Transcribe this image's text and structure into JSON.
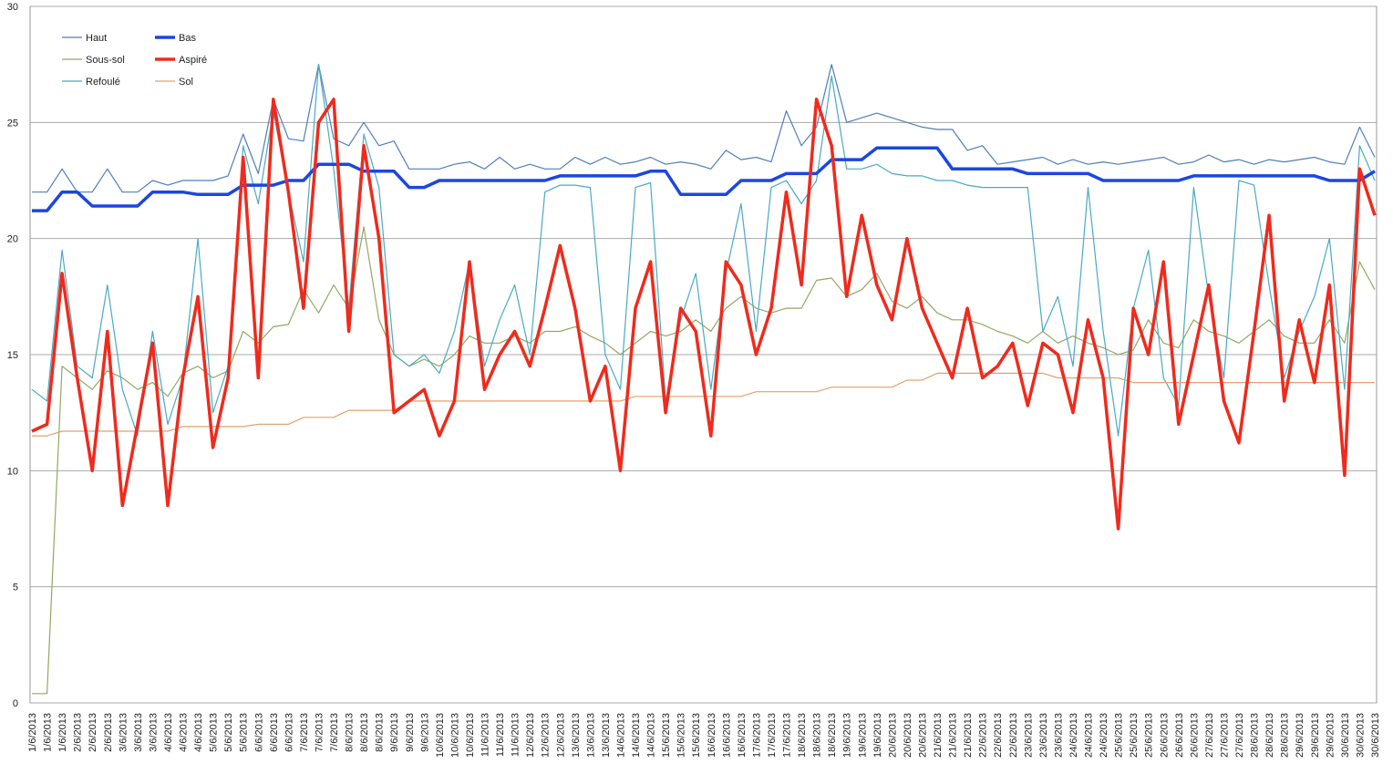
{
  "chart_data": {
    "type": "line",
    "categories": [
      "1/6/2013",
      "1/6/2013",
      "1/6/2013",
      "2/6/2013",
      "2/6/2013",
      "2/6/2013",
      "3/6/2013",
      "3/6/2013",
      "3/6/2013",
      "4/6/2013",
      "4/6/2013",
      "4/6/2013",
      "5/6/2013",
      "5/6/2013",
      "5/6/2013",
      "6/6/2013",
      "6/6/2013",
      "6/6/2013",
      "7/6/2013",
      "7/6/2013",
      "7/6/2013",
      "8/6/2013",
      "8/6/2013",
      "8/6/2013",
      "9/6/2013",
      "9/6/2013",
      "9/6/2013",
      "10/6/2013",
      "10/6/2013",
      "10/6/2013",
      "11/6/2013",
      "11/6/2013",
      "11/6/2013",
      "12/6/2013",
      "12/6/2013",
      "12/6/2013",
      "13/6/2013",
      "13/6/2013",
      "13/6/2013",
      "14/6/2013",
      "14/6/2013",
      "14/6/2013",
      "15/6/2013",
      "15/6/2013",
      "15/6/2013",
      "16/6/2013",
      "16/6/2013",
      "16/6/2013",
      "17/6/2013",
      "17/6/2013",
      "17/6/2013",
      "18/6/2013",
      "18/6/2013",
      "18/6/2013",
      "19/6/2013",
      "19/6/2013",
      "19/6/2013",
      "20/6/2013",
      "20/6/2013",
      "20/6/2013",
      "21/6/2013",
      "21/6/2013",
      "21/6/2013",
      "22/6/2013",
      "22/6/2013",
      "22/6/2013",
      "23/6/2013",
      "23/6/2013",
      "23/6/2013",
      "24/6/2013",
      "24/6/2013",
      "24/6/2013",
      "25/6/2013",
      "25/6/2013",
      "25/6/2013",
      "26/6/2013",
      "26/6/2013",
      "26/6/2013",
      "27/6/2013",
      "27/6/2013",
      "27/6/2013",
      "28/6/2013",
      "28/6/2013",
      "28/6/2013",
      "29/6/2013",
      "29/6/2013",
      "29/6/2013",
      "30/6/2013",
      "30/6/2013",
      "30/6/2013"
    ],
    "series": [
      {
        "name": "Haut",
        "color": "#4f7fb8",
        "values": [
          22,
          22,
          23,
          22,
          22,
          23,
          22,
          22,
          22.5,
          22.3,
          22.5,
          22.5,
          22.5,
          22.7,
          24.5,
          22.8,
          26,
          24.3,
          24.2,
          27.5,
          24.3,
          24,
          25,
          24,
          24.2,
          23,
          23,
          23,
          23.2,
          23.3,
          23,
          23.5,
          23,
          23.2,
          23,
          23,
          23.5,
          23.2,
          23.5,
          23.2,
          23.3,
          23.5,
          23.2,
          23.3,
          23.2,
          23,
          23.8,
          23.4,
          23.5,
          23.3,
          25.5,
          24,
          24.8,
          27.5,
          25,
          25.2,
          25.4,
          25.2,
          25,
          24.8,
          24.7,
          24.7,
          23.8,
          24,
          23.2,
          23.3,
          23.4,
          23.5,
          23.2,
          23.4,
          23.2,
          23.3,
          23.2,
          23.3,
          23.4,
          23.5,
          23.2,
          23.3,
          23.6,
          23.3,
          23.4,
          23.2,
          23.4,
          23.3,
          23.4,
          23.5,
          23.3,
          23.2,
          24.8,
          23.5
        ]
      },
      {
        "name": "Sous-sol",
        "color": "#93a862",
        "values": [
          0.4,
          0.4,
          14.5,
          14,
          13.5,
          14.3,
          14,
          13.5,
          13.8,
          13.2,
          14.2,
          14.5,
          14,
          14.3,
          16,
          15.5,
          16.2,
          16.3,
          17.8,
          16.8,
          18,
          17,
          20.5,
          16.5,
          15,
          14.5,
          14.8,
          14.5,
          15,
          15.8,
          15.5,
          15.5,
          15.8,
          15.5,
          16,
          16,
          16.2,
          15.8,
          15.5,
          15,
          15.5,
          16,
          15.8,
          16,
          16.5,
          16,
          17,
          17.5,
          17,
          16.8,
          17,
          17,
          18.2,
          18.3,
          17.5,
          17.8,
          18.5,
          17.3,
          17,
          17.5,
          16.8,
          16.5,
          16.5,
          16.3,
          16,
          15.8,
          15.5,
          16,
          15.5,
          15.8,
          15.5,
          15.3,
          15,
          15.2,
          16.5,
          15.5,
          15.3,
          16.5,
          16,
          15.8,
          15.5,
          16,
          16.5,
          15.8,
          15.5,
          15.5,
          16.5,
          15.5,
          19,
          17.8
        ]
      },
      {
        "name": "Refoulé",
        "color": "#4aaac4",
        "values": [
          13.5,
          13,
          19.5,
          14.5,
          14,
          18,
          13.5,
          11.5,
          16,
          12,
          14,
          20,
          12.5,
          14.5,
          24,
          21.5,
          25.5,
          22,
          19,
          27.5,
          23,
          17,
          24.5,
          22.2,
          15,
          14.5,
          15,
          14.2,
          16,
          19,
          14.5,
          16.5,
          18,
          15,
          22,
          22.3,
          22.3,
          22.2,
          15,
          13.5,
          22.2,
          22.4,
          13,
          16.5,
          18.5,
          13.5,
          18.5,
          21.5,
          16,
          22.2,
          22.5,
          21.5,
          22.5,
          27,
          23,
          23,
          23.2,
          22.8,
          22.7,
          22.7,
          22.5,
          22.5,
          22.3,
          22.2,
          22.2,
          22.2,
          22.2,
          16,
          17.5,
          14.5,
          22.2,
          16,
          11.5,
          17,
          19.5,
          14,
          12.8,
          22.2,
          17.5,
          14,
          22.5,
          22.3,
          18,
          14,
          16,
          17.5,
          20,
          13.5,
          24,
          22.5
        ]
      },
      {
        "name": "Bas",
        "color": "#1c46e0",
        "values": [
          21.2,
          21.2,
          22,
          22,
          21.4,
          21.4,
          21.4,
          21.4,
          22,
          22,
          22,
          21.9,
          21.9,
          21.9,
          22.3,
          22.3,
          22.3,
          22.5,
          22.5,
          23.2,
          23.2,
          23.2,
          22.9,
          22.9,
          22.9,
          22.2,
          22.2,
          22.5,
          22.5,
          22.5,
          22.5,
          22.5,
          22.5,
          22.5,
          22.5,
          22.7,
          22.7,
          22.7,
          22.7,
          22.7,
          22.7,
          22.9,
          22.9,
          21.9,
          21.9,
          21.9,
          21.9,
          22.5,
          22.5,
          22.5,
          22.8,
          22.8,
          22.8,
          23.4,
          23.4,
          23.4,
          23.9,
          23.9,
          23.9,
          23.9,
          23.9,
          23,
          23,
          23,
          23,
          23,
          22.8,
          22.8,
          22.8,
          22.8,
          22.8,
          22.5,
          22.5,
          22.5,
          22.5,
          22.5,
          22.5,
          22.7,
          22.7,
          22.7,
          22.7,
          22.7,
          22.7,
          22.7,
          22.7,
          22.7,
          22.5,
          22.5,
          22.5,
          22.9
        ]
      },
      {
        "name": "Aspiré",
        "color": "#f02a1c",
        "values": [
          11.7,
          12,
          18.5,
          14,
          10,
          16,
          8.5,
          12,
          15.5,
          8.5,
          14,
          17.5,
          11,
          14,
          23.5,
          14,
          26,
          22,
          17,
          25,
          26,
          16,
          24,
          20,
          12.5,
          13,
          13.5,
          11.5,
          13,
          19,
          13.5,
          15,
          16,
          14.5,
          17,
          19.7,
          17,
          13,
          14.5,
          10,
          17,
          19,
          12.5,
          17,
          16,
          11.5,
          19,
          18,
          15,
          17,
          22,
          18,
          26,
          24,
          17.5,
          21,
          18,
          16.5,
          20,
          17,
          15.5,
          14,
          17,
          14,
          14.5,
          15.5,
          12.8,
          15.5,
          15,
          12.5,
          16.5,
          14,
          7.5,
          17,
          15,
          19,
          12,
          15,
          18,
          13,
          11.2,
          16,
          21,
          13,
          16.5,
          13.8,
          18,
          9.8,
          23,
          21
        ]
      },
      {
        "name": "Sol",
        "color": "#e3a26e",
        "values": [
          11.5,
          11.5,
          11.7,
          11.7,
          11.7,
          11.7,
          11.7,
          11.7,
          11.7,
          11.7,
          11.9,
          11.9,
          11.9,
          11.9,
          11.9,
          12,
          12,
          12,
          12.3,
          12.3,
          12.3,
          12.6,
          12.6,
          12.6,
          12.6,
          13,
          13,
          13,
          13,
          13,
          13,
          13,
          13,
          13,
          13,
          13,
          13,
          13,
          13,
          13,
          13.2,
          13.2,
          13.2,
          13.2,
          13.2,
          13.2,
          13.2,
          13.2,
          13.4,
          13.4,
          13.4,
          13.4,
          13.4,
          13.6,
          13.6,
          13.6,
          13.6,
          13.6,
          13.9,
          13.9,
          14.2,
          14.2,
          14.2,
          14.2,
          14.2,
          14.2,
          14.2,
          14.2,
          14,
          14,
          14,
          14,
          14,
          13.8,
          13.8,
          13.8,
          13.8,
          13.8,
          13.8,
          13.8,
          13.8,
          13.8,
          13.8,
          13.8,
          13.8,
          13.8,
          13.8,
          13.8,
          13.8,
          13.8
        ]
      }
    ],
    "ylim": [
      0,
      30
    ],
    "yticks": [
      0,
      5,
      10,
      15,
      20,
      25,
      30
    ],
    "grid": true
  }
}
